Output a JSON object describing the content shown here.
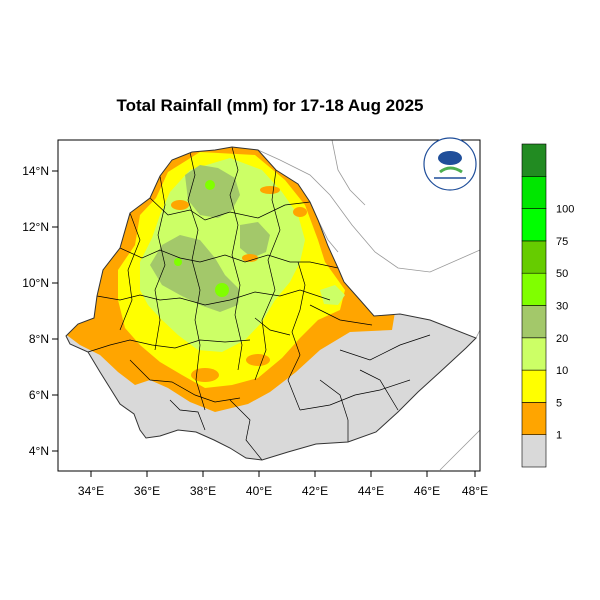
{
  "map": {
    "title": "Total Rainfall (mm) for 17-18 Aug 2025",
    "x_ticks": [
      "34°E",
      "36°E",
      "38°E",
      "40°E",
      "42°E",
      "44°E",
      "46°E",
      "48°E"
    ],
    "y_ticks": [
      "14°N",
      "12°N",
      "10°N",
      "8°N",
      "6°N",
      "4°N"
    ],
    "x_range": [
      33.2,
      48.2
    ],
    "y_range": [
      3.2,
      15.0
    ],
    "country": "Ethiopia",
    "colors": {
      "land_outside": "#ffffff",
      "no_rain": "#d9d9d9",
      "light": "#ffa500",
      "moderate": "#ffff00"
    }
  },
  "colorbar": {
    "labels": [
      "1",
      "5",
      "10",
      "20",
      "30",
      "50",
      "75",
      "100"
    ],
    "colors": [
      "#d9d9d9",
      "#ffa500",
      "#ffff00",
      "#ccff66",
      "#a3c86a",
      "#80ff00",
      "#66cc00",
      "#00ff00",
      "#00e600",
      "#228b22"
    ]
  },
  "logo": {
    "name": "Ethiopian Meteorology Institute",
    "colors": [
      "#1f4e9a",
      "#4caf50",
      "#ffffff"
    ]
  }
}
